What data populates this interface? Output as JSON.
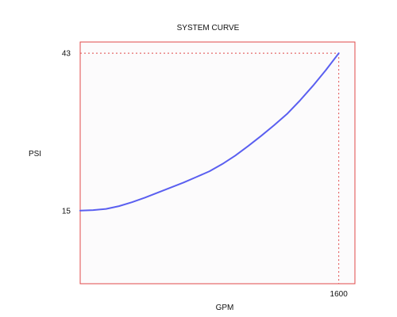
{
  "chart_data": {
    "type": "line",
    "title": "SYSTEM CURVE",
    "xlabel": "GPM",
    "ylabel": "PSI",
    "xlim": [
      0,
      1700
    ],
    "ylim": [
      2,
      45
    ],
    "x_ticks": [
      1600
    ],
    "x_tick_labels": [
      "1600"
    ],
    "y_ticks": [
      15,
      43
    ],
    "y_tick_labels": [
      "15",
      "43"
    ],
    "grid": false,
    "legend": "none",
    "series": [
      {
        "x": [
          0,
          80,
          160,
          240,
          320,
          400,
          480,
          560,
          640,
          720,
          800,
          880,
          960,
          1040,
          1120,
          1200,
          1280,
          1360,
          1440,
          1520,
          1600
        ],
        "y": [
          15.0,
          15.1,
          15.3,
          15.8,
          16.5,
          17.3,
          18.2,
          19.1,
          20.0,
          21.0,
          22.0,
          23.3,
          24.8,
          26.5,
          28.3,
          30.2,
          32.2,
          34.6,
          37.2,
          40.0,
          43.0
        ]
      }
    ],
    "reference_lines": [
      {
        "axis": "y",
        "value": 43
      },
      {
        "axis": "x",
        "value": 1600
      }
    ],
    "colors": {
      "series": "#5a5ff0",
      "frame": "#e04a4a",
      "reference": "#e04a4a",
      "plot_background": "#fcfbfc"
    }
  }
}
